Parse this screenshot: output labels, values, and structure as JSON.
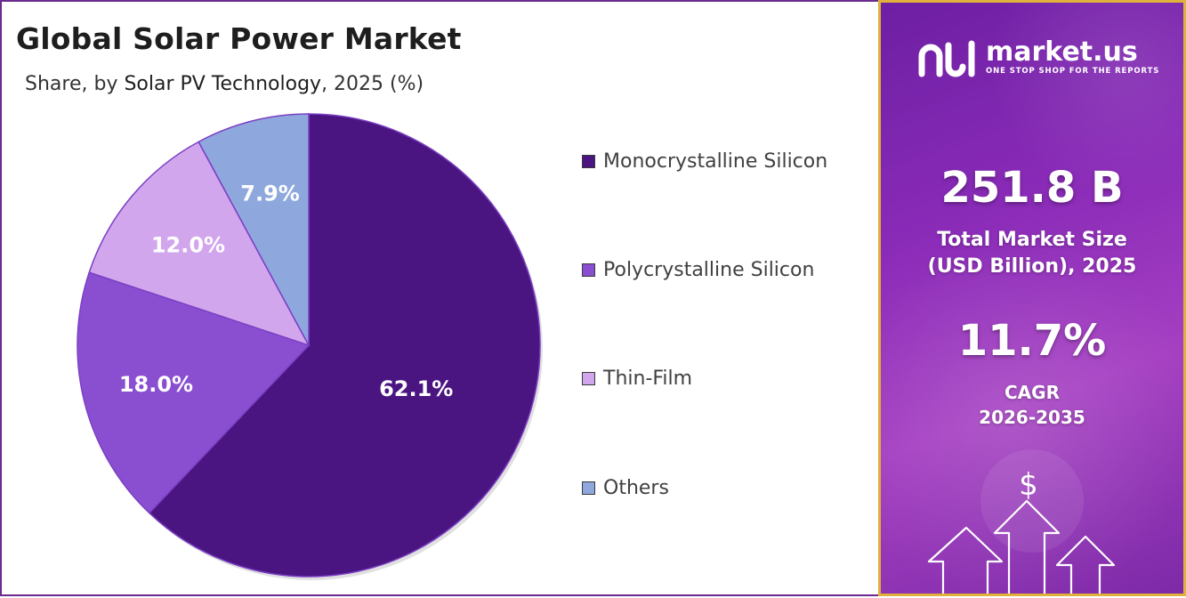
{
  "title": "Global Solar Power Market",
  "subtitle": {
    "prefix": "Share, by ",
    "segment": "Solar PV Technology",
    "suffix": ", 2025 (%)"
  },
  "chart_data": {
    "type": "pie",
    "title": "Global Solar Power Market",
    "subtitle": "Share, by Solar PV Technology, 2025 (%)",
    "categories": [
      "Monocrystalline Silicon",
      "Polycrystalline Silicon",
      "Thin-Film",
      "Others"
    ],
    "values": [
      62.1,
      18.0,
      12.0,
      7.9
    ],
    "labels": [
      "62.1%",
      "18.0%",
      "12.0%",
      "7.9%"
    ],
    "colors": [
      "#4b1581",
      "#8a4fd0",
      "#d2a6ec",
      "#8ea8de"
    ],
    "legend": "right",
    "start": "top, clockwise"
  },
  "side_panel": {
    "brand_name": "market.us",
    "brand_tagline": "ONE STOP SHOP FOR THE REPORTS",
    "market_size_value": "251.8 B",
    "market_size_label_line1": "Total Market Size",
    "market_size_label_line2": "(USD Billion), 2025",
    "cagr_value": "11.7%",
    "cagr_label_line1": "CAGR",
    "cagr_label_line2": "2026-2035",
    "dollar_symbol": "$",
    "logo_icon": "market-us-logo-icon",
    "growth_icon": "growth-arrows-icon"
  }
}
